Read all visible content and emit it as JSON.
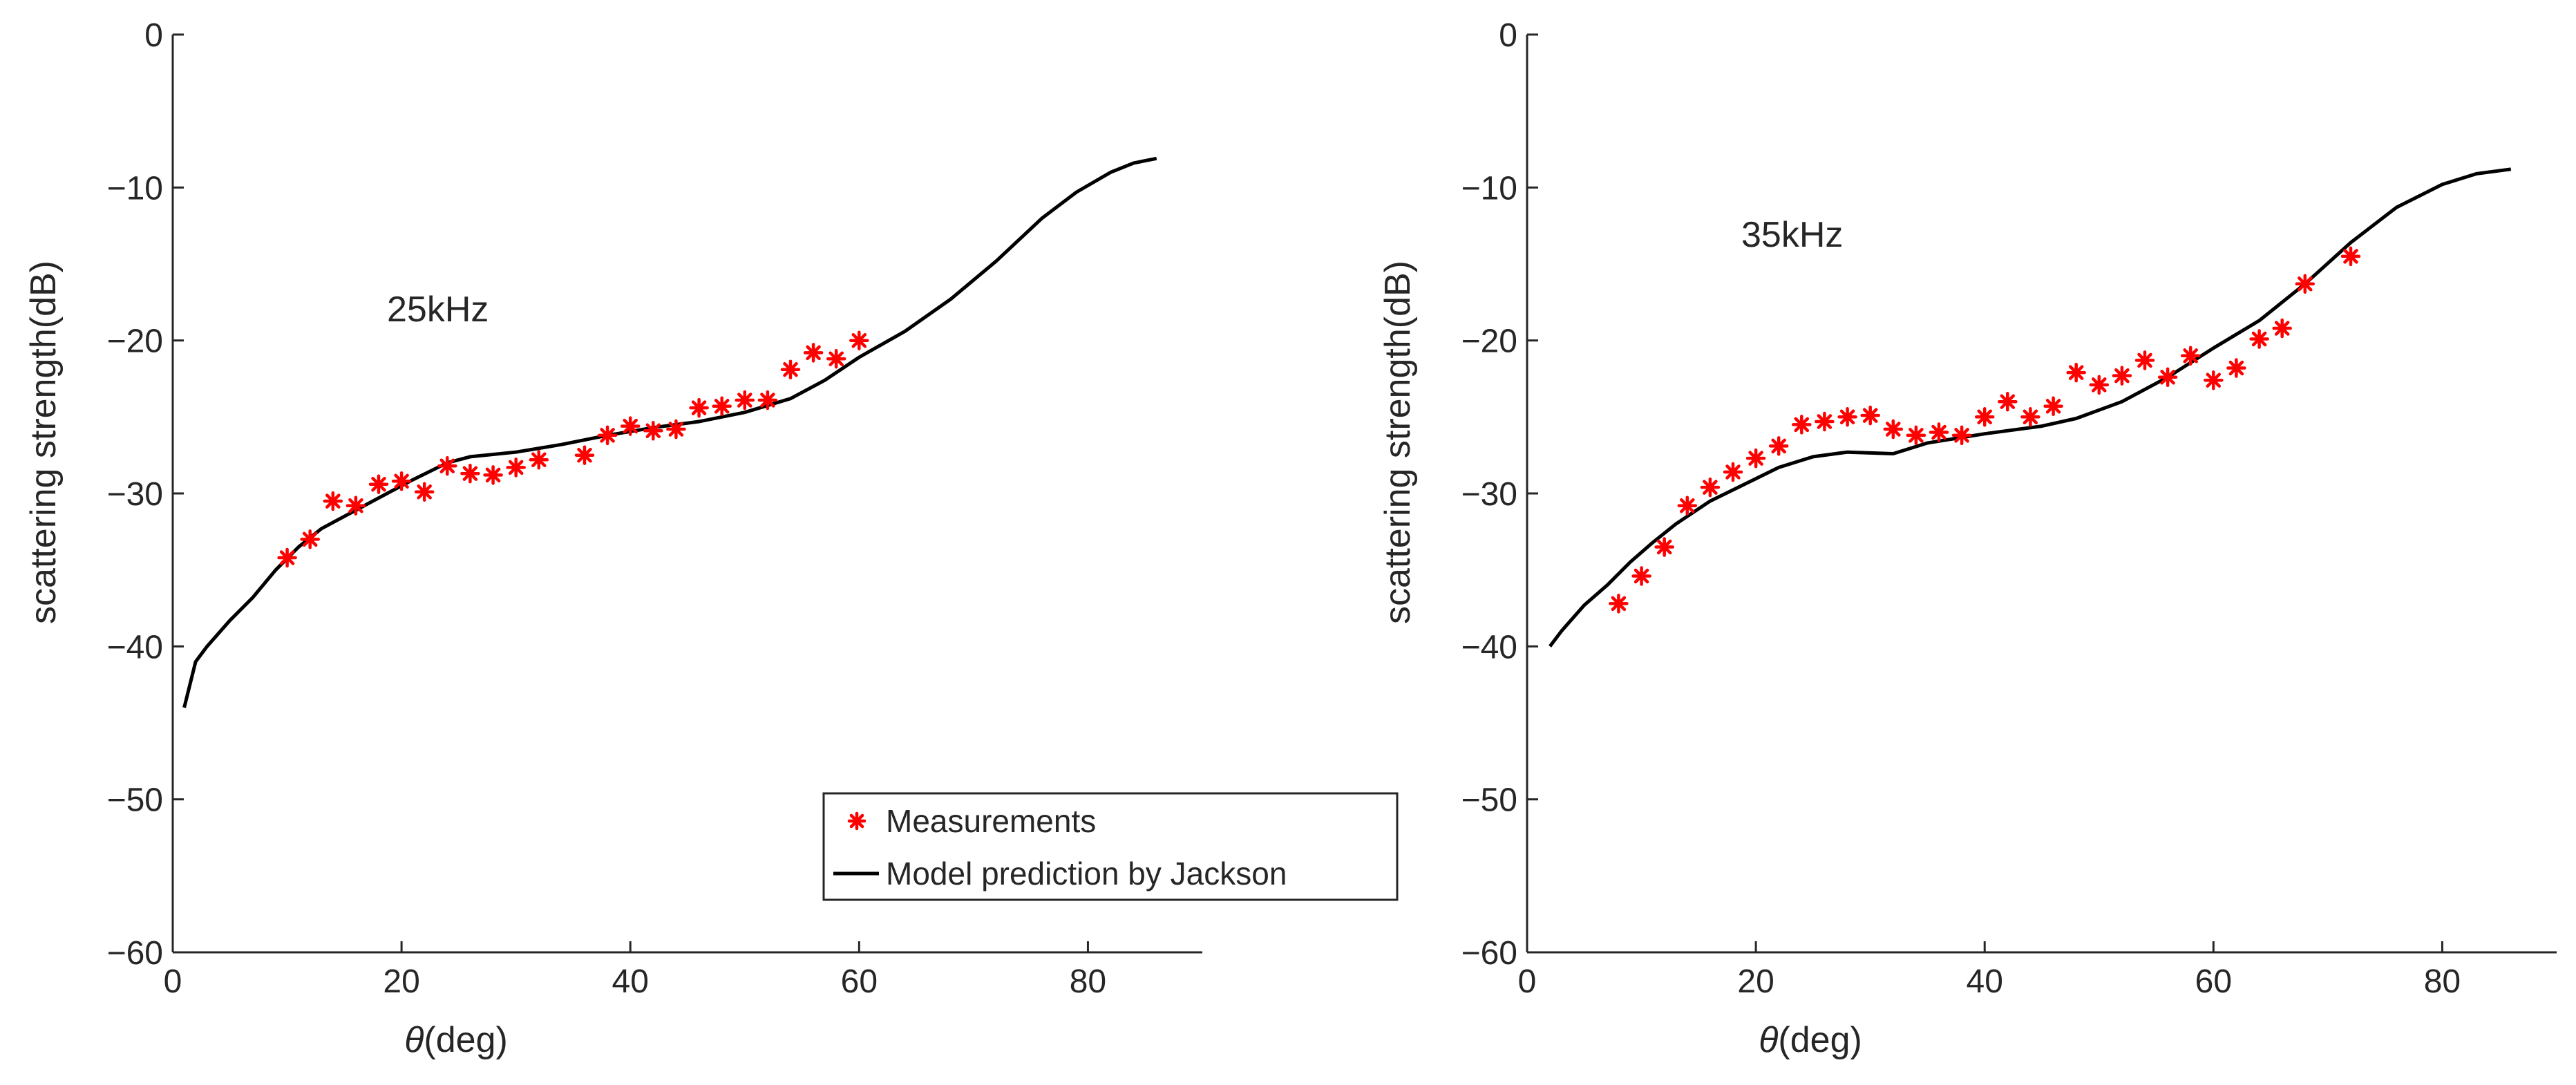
{
  "chart_data": [
    {
      "type": "scatter",
      "annotation": "25kHz",
      "xlabel_symbol": "θ",
      "xlabel_unit": "(deg)",
      "ylabel": "scattering strength(dB)",
      "xlim": [
        0,
        90
      ],
      "ylim": [
        -60,
        0
      ],
      "xticks": [
        0,
        20,
        40,
        60,
        80
      ],
      "yticks": [
        0,
        -10,
        -20,
        -30,
        -40,
        -50,
        -60
      ],
      "xtick_labels": [
        "0",
        "20",
        "40",
        "60",
        "80"
      ],
      "ytick_labels": [
        "0",
        "−10",
        "−20",
        "−30",
        "−40",
        "−50",
        "−60"
      ],
      "legend_location": "lower-right",
      "series": [
        {
          "name": "Measurements",
          "kind": "marker",
          "color": "#ff0000",
          "x": [
            10,
            12,
            14,
            16,
            18,
            20,
            22,
            24,
            26,
            28,
            30,
            32,
            36,
            38,
            40,
            42,
            44,
            46,
            48,
            50,
            52,
            54,
            56,
            58,
            60
          ],
          "y": [
            -34.2,
            -33.0,
            -30.5,
            -30.8,
            -29.4,
            -29.2,
            -29.9,
            -28.2,
            -28.7,
            -28.8,
            -28.3,
            -27.8,
            -27.5,
            -26.2,
            -25.6,
            -25.9,
            -25.8,
            -24.4,
            -24.3,
            -23.9,
            -23.9,
            -21.9,
            -20.8,
            -21.2,
            -20.0
          ]
        },
        {
          "name": "Model prediction by Jackson",
          "kind": "line",
          "color": "#000000",
          "x": [
            1,
            2,
            3,
            5,
            7,
            9,
            11,
            13,
            15,
            18,
            21,
            24,
            26,
            30,
            34,
            38,
            42,
            46,
            50,
            54,
            57,
            60,
            64,
            68,
            72,
            76,
            79,
            82,
            84,
            86
          ],
          "y": [
            -44,
            -41,
            -40,
            -38.3,
            -36.8,
            -35,
            -33.5,
            -32.3,
            -31.5,
            -30.3,
            -29.1,
            -28,
            -27.6,
            -27.3,
            -26.8,
            -26.2,
            -25.7,
            -25.3,
            -24.7,
            -23.8,
            -22.6,
            -21.1,
            -19.4,
            -17.3,
            -14.8,
            -12,
            -10.3,
            -9.0,
            -8.4,
            -8.1
          ]
        }
      ]
    },
    {
      "type": "scatter",
      "annotation": "35kHz",
      "xlabel_symbol": "θ",
      "xlabel_unit": "(deg)",
      "ylabel": "scattering strength(dB)",
      "xlim": [
        0,
        90
      ],
      "ylim": [
        -60,
        0
      ],
      "xticks": [
        0,
        20,
        40,
        60,
        80
      ],
      "yticks": [
        0,
        -10,
        -20,
        -30,
        -40,
        -50,
        -60
      ],
      "xtick_labels": [
        "0",
        "20",
        "40",
        "60",
        "80"
      ],
      "ytick_labels": [
        "0",
        "−10",
        "−20",
        "−30",
        "−40",
        "−50",
        "−60"
      ],
      "series": [
        {
          "name": "Measurements",
          "kind": "marker",
          "color": "#ff0000",
          "x": [
            8,
            10,
            12,
            14,
            16,
            18,
            20,
            22,
            24,
            26,
            28,
            30,
            32,
            34,
            36,
            38,
            40,
            42,
            44,
            46,
            48,
            50,
            52,
            54,
            56,
            58,
            60,
            62,
            64,
            66,
            68,
            72
          ],
          "y": [
            -37.2,
            -35.4,
            -33.5,
            -30.8,
            -29.6,
            -28.6,
            -27.7,
            -26.9,
            -25.5,
            -25.3,
            -25.0,
            -24.9,
            -25.8,
            -26.2,
            -26.0,
            -26.2,
            -25.0,
            -24.0,
            -25.0,
            -24.3,
            -22.1,
            -22.9,
            -22.3,
            -21.3,
            -22.4,
            -21.0,
            -22.6,
            -21.8,
            -19.9,
            -19.2,
            -16.3,
            -14.5
          ]
        },
        {
          "name": "Model prediction by Jackson",
          "kind": "line",
          "color": "#000000",
          "x": [
            2,
            3,
            5,
            7,
            9,
            11,
            13,
            16,
            19,
            22,
            25,
            28,
            32,
            35,
            40,
            45,
            48,
            52,
            56,
            60,
            64,
            68,
            72,
            76,
            80,
            83,
            86
          ],
          "y": [
            -40,
            -39,
            -37.3,
            -36,
            -34.5,
            -33.2,
            -32,
            -30.5,
            -29.4,
            -28.3,
            -27.6,
            -27.3,
            -27.4,
            -26.7,
            -26.1,
            -25.6,
            -25.1,
            -24,
            -22.4,
            -20.5,
            -18.7,
            -16.3,
            -13.6,
            -11.3,
            -9.8,
            -9.1,
            -8.8
          ]
        }
      ]
    }
  ]
}
